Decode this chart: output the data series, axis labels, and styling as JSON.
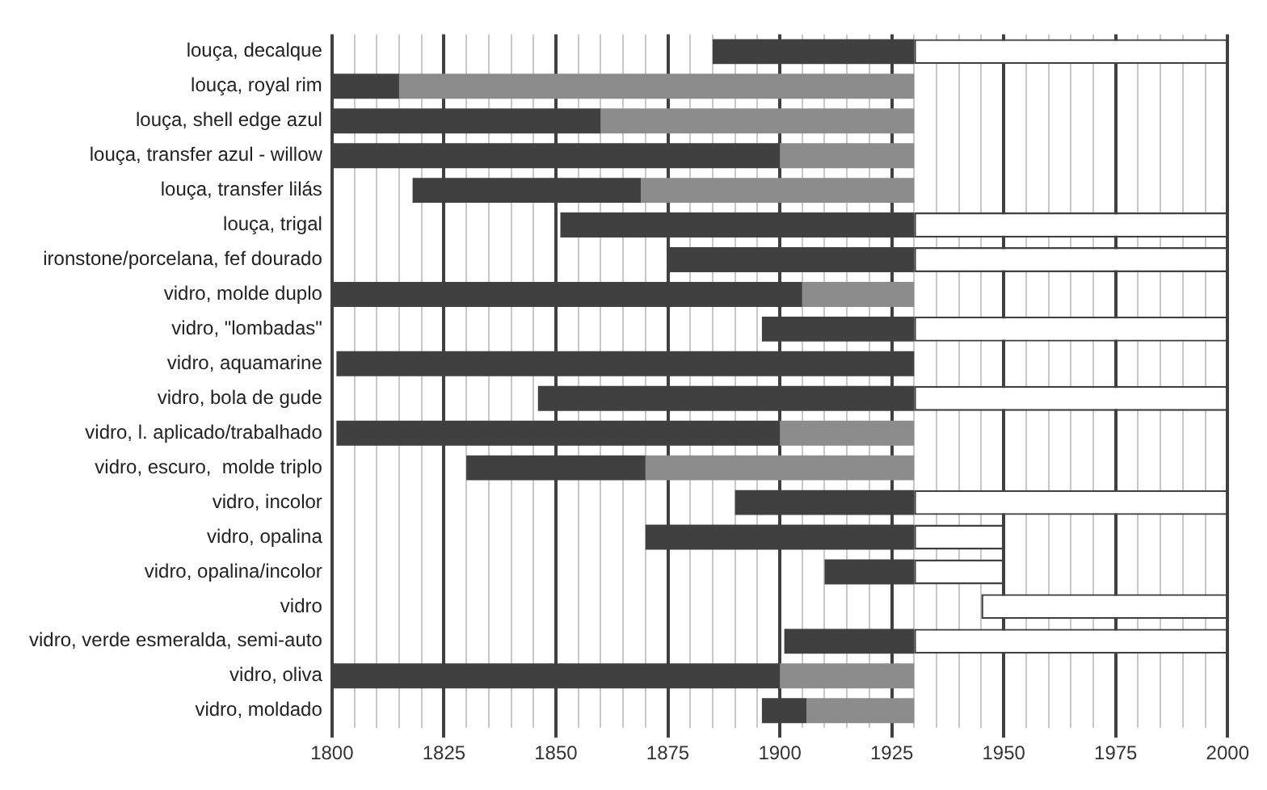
{
  "chart_data": {
    "type": "bar",
    "orientation": "horizontal",
    "categories": [
      "louça, decalque",
      "louça, royal rim",
      "louça, shell edge azul",
      "louça, transfer azul - willow",
      "louça, transfer lilás",
      "louça, trigal",
      "ironstone/porcelana, fef dourado",
      "vidro, molde duplo",
      "vidro, \"lombadas\"",
      "vidro, aquamarine",
      "vidro, bola de gude",
      "vidro, l. aplicado/trabalhado",
      "vidro, escuro,  molde triplo",
      "vidro, incolor",
      "vidro, opalina",
      "vidro, opalina/incolor",
      "vidro",
      "vidro, verde esmeralda, semi-auto",
      "vidro, oliva",
      "vidro, moldado"
    ],
    "series": [
      {
        "color": "#404040",
        "base": [
          1885,
          1800,
          1800,
          1800,
          1818,
          1851,
          1875,
          1800,
          1896,
          1801,
          1846,
          1801,
          1830,
          1890,
          1870,
          1910,
          null,
          1901,
          1800,
          1896
        ],
        "values": [
          45,
          15,
          60,
          100,
          51,
          79,
          55,
          105,
          34,
          129,
          84,
          99,
          40,
          40,
          60,
          20,
          null,
          29,
          100,
          10
        ]
      },
      {
        "color": "#8c8c8c",
        "base": [
          null,
          1815,
          1860,
          1900,
          1869,
          null,
          null,
          1905,
          null,
          null,
          null,
          1900,
          1870,
          null,
          null,
          null,
          null,
          null,
          1900,
          1906
        ],
        "values": [
          null,
          115,
          70,
          30,
          61,
          null,
          null,
          25,
          null,
          null,
          null,
          30,
          60,
          null,
          null,
          null,
          null,
          null,
          30,
          24
        ]
      },
      {
        "color": "#ffffff",
        "base": [
          1930,
          null,
          null,
          null,
          null,
          1930,
          1930,
          null,
          1930,
          null,
          1930,
          null,
          null,
          1930,
          1930,
          1930,
          1945,
          1930,
          null,
          null
        ],
        "values": [
          70,
          null,
          null,
          null,
          null,
          70,
          70,
          null,
          70,
          null,
          70,
          null,
          null,
          70,
          20,
          20,
          55,
          70,
          null,
          null
        ]
      }
    ],
    "xlim": [
      1800,
      2000
    ],
    "xticks": [
      1800,
      {
        "value": 1805,
        "label": null
      },
      {
        "value": 1810,
        "label": null
      },
      {
        "value": 1815,
        "label": null
      },
      {
        "value": 1820,
        "label": null
      },
      1825,
      {
        "value": 1830,
        "label": null
      },
      {
        "value": 1835,
        "label": null
      },
      {
        "value": 1840,
        "label": null
      },
      {
        "value": 1845,
        "label": null
      },
      1850,
      {
        "value": 1855,
        "label": null
      },
      {
        "value": 1860,
        "label": null
      },
      {
        "value": 1865,
        "label": null
      },
      {
        "value": 1870,
        "label": null
      },
      1875,
      {
        "value": 1880,
        "label": null
      },
      {
        "value": 1885,
        "label": null
      },
      {
        "value": 1890,
        "label": null
      },
      {
        "value": 1895,
        "label": null
      },
      1900,
      {
        "value": 1905,
        "label": null
      },
      {
        "value": 1910,
        "label": null
      },
      {
        "value": 1915,
        "label": null
      },
      {
        "value": 1920,
        "label": null
      },
      1925,
      {
        "value": 1930,
        "label": null
      },
      {
        "value": 1935,
        "label": null
      },
      {
        "value": 1940,
        "label": null
      },
      {
        "value": 1945,
        "label": null
      },
      1950,
      {
        "value": 1955,
        "label": null
      },
      {
        "value": 1960,
        "label": null
      },
      {
        "value": 1965,
        "label": null
      },
      {
        "value": 1970,
        "label": null
      },
      1975,
      {
        "value": 1980,
        "label": null
      },
      {
        "value": 1985,
        "label": null
      },
      {
        "value": 1990,
        "label": null
      },
      {
        "value": 1995,
        "label": null
      },
      2000
    ],
    "grid": "x",
    "legend": false
  }
}
